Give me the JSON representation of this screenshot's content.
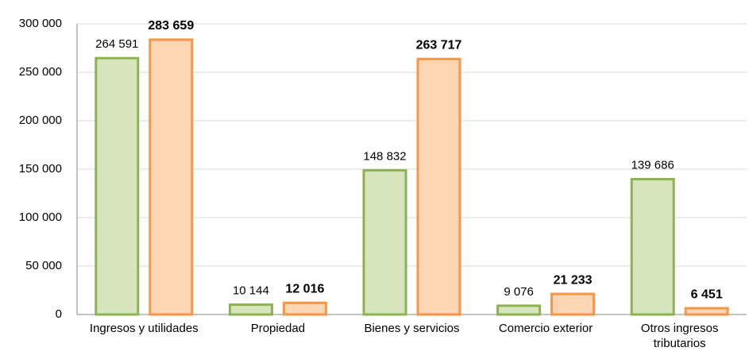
{
  "chart_data": {
    "type": "bar",
    "categories": [
      "Ingresos y utilidades",
      "Propiedad",
      "Bienes y servicios",
      "Comercio exterior",
      "Otros ingresos tributarios"
    ],
    "series": [
      {
        "color": "#8db252",
        "fill": "#d8e4bc",
        "values": [
          264591,
          10144,
          148832,
          9076,
          139686
        ],
        "value_labels": [
          "264 591",
          "10 144",
          "148 832",
          "9 076",
          "139 686"
        ]
      },
      {
        "color": "#f79646",
        "fill": "#fcd5b5",
        "values": [
          283659,
          12016,
          263717,
          21233,
          6451
        ],
        "value_labels": [
          "283 659",
          "12 016",
          "263 717",
          "21 233",
          "6 451"
        ]
      }
    ],
    "ylim": [
      0,
      300000
    ],
    "yticks": [
      0,
      {
        "value": 50000,
        "label": "50 000"
      },
      {
        "value": 100000,
        "label": "100 000"
      },
      {
        "value": 150000,
        "label": "150 000"
      },
      {
        "value": 200000,
        "label": "200 000"
      },
      {
        "value": 250000,
        "label": "250 000"
      },
      {
        "value": 300000,
        "label": "300 000"
      }
    ],
    "grid": true
  }
}
